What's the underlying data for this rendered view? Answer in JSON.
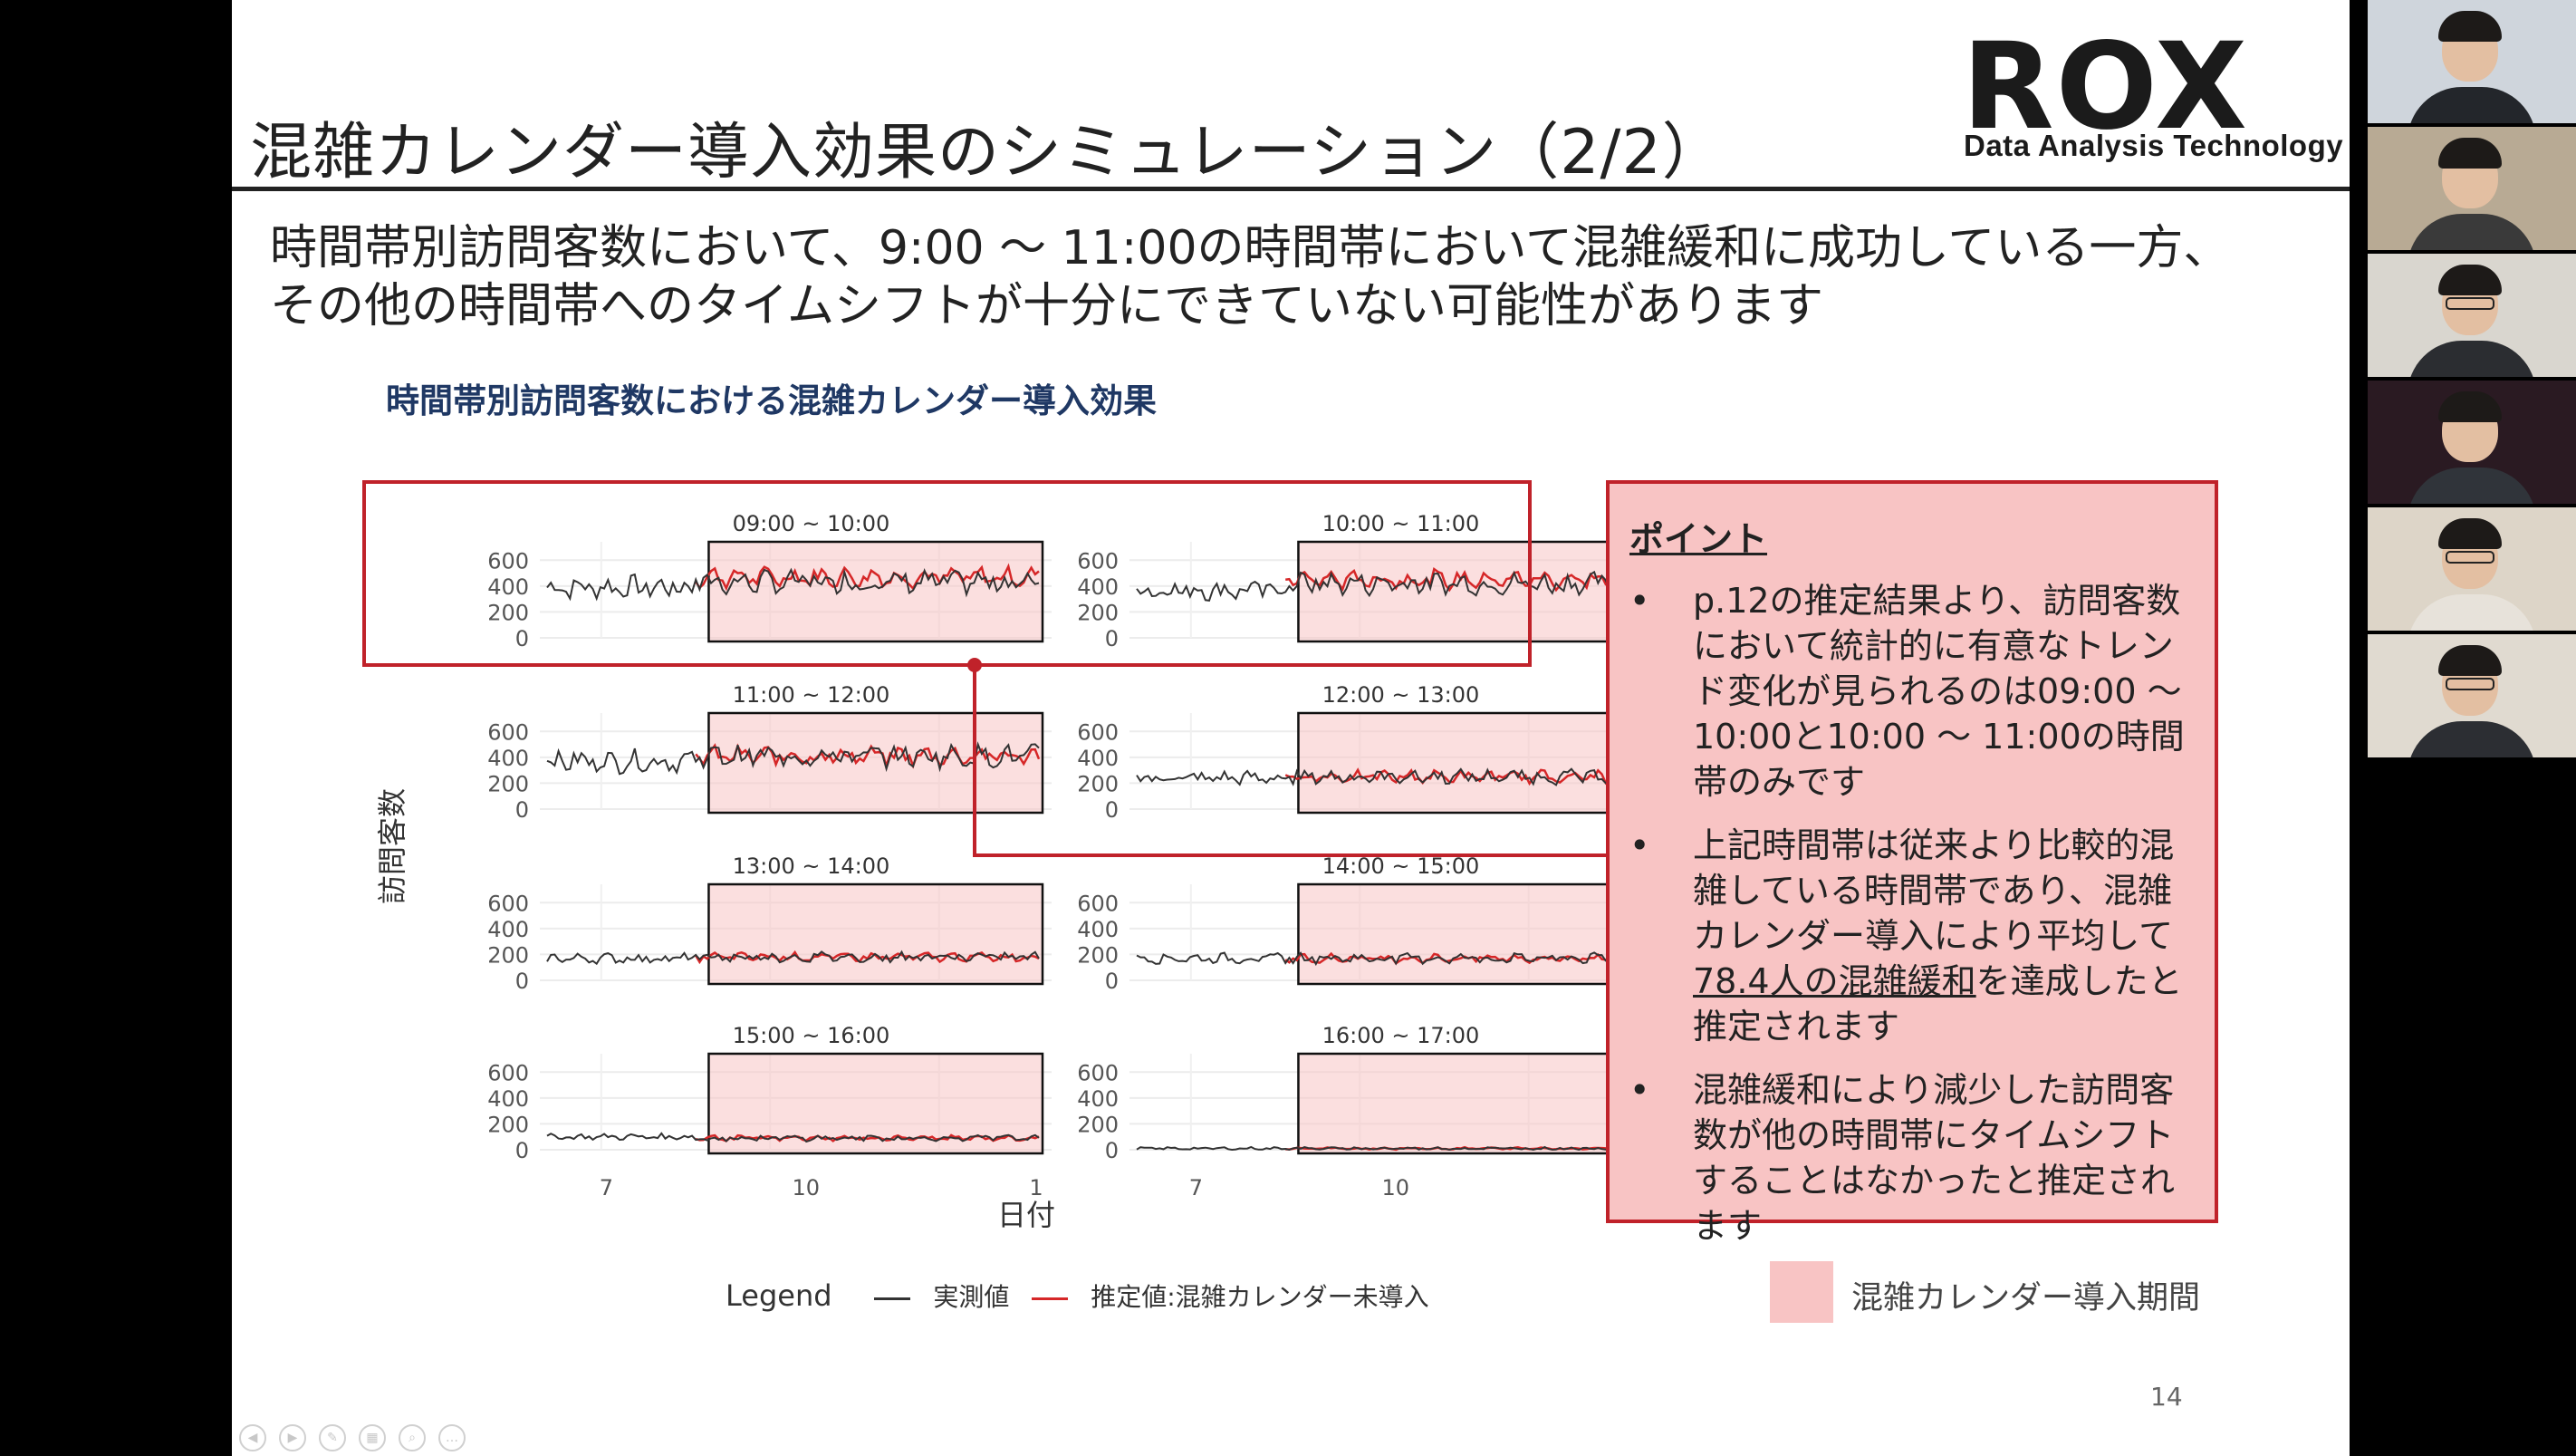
{
  "slide": {
    "title": "混雑カレンダー導入効果のシミュレーション（2/2）",
    "logo_text": "ROX",
    "logo_subtitle": "Data Analysis Technology",
    "lead_line1": "時間帯別訪問客数において、9:00 ～ 11:00の時間帯において混雑緩和に成功している一方、",
    "lead_line2": "その他の時間帯へのタイムシフトが十分にできていない可能性があります",
    "chart_title": "時間帯別訪問客数における混雑カレンダー導入効果",
    "page_number": "14"
  },
  "points": {
    "heading": "ポイント",
    "bullet_marker": "•",
    "b1": "p.12の推定結果より、訪問客数において統計的に有意なトレンド変化が見られるのは09:00 ～ 10:00と10:00 ～ 11:00の時間帯のみです",
    "b2_pre": "上記時間帯は従来より比較的混雑している時間帯であり、混雑カレンダー導入により平均して",
    "b2_underline": "78.4人の混雑緩和",
    "b2_post": "を達成したと推定されます",
    "b3": "混雑緩和により減少した訪問客数が他の時間帯にタイムシフトすることはなかったと推定されます"
  },
  "period_legend": "混雑カレンダー導入期間",
  "legend": {
    "title": "Legend",
    "actual_label": "実測値",
    "estimate_label": "推定値:混雑カレンダー未導入",
    "actual_color": "#333333",
    "estimate_color": "#d62728"
  },
  "colors": {
    "accent_red": "#c0222a",
    "period_fill": "#f8c4c4",
    "chart_title": "#1f3864"
  },
  "chart_data": {
    "type": "line",
    "ylabel": "訪問客数",
    "xlabel": "日付",
    "ylim": [
      0,
      700
    ],
    "y_ticks": [
      "600",
      "400",
      "200",
      "0"
    ],
    "x_ticks": [
      "7",
      "10",
      "1"
    ],
    "panels": [
      {
        "title": "09:00 ~ 10:00",
        "pre_level": 390,
        "post_actual": 430,
        "post_estimate": 470,
        "highlighted": true
      },
      {
        "title": "10:00 ~ 11:00",
        "pre_level": 370,
        "post_actual": 420,
        "post_estimate": 450,
        "highlighted": true
      },
      {
        "title": "11:00 ~ 12:00",
        "pre_level": 370,
        "post_actual": 410,
        "post_estimate": 410,
        "highlighted": false
      },
      {
        "title": "12:00 ~ 13:00",
        "pre_level": 240,
        "post_actual": 250,
        "post_estimate": 250,
        "highlighted": false
      },
      {
        "title": "13:00 ~ 14:00",
        "pre_level": 170,
        "post_actual": 180,
        "post_estimate": 180,
        "highlighted": false
      },
      {
        "title": "14:00 ~ 15:00",
        "pre_level": 170,
        "post_actual": 170,
        "post_estimate": 170,
        "highlighted": false
      },
      {
        "title": "15:00 ~ 16:00",
        "pre_level": 100,
        "post_actual": 90,
        "post_estimate": 90,
        "highlighted": false
      },
      {
        "title": "16:00 ~ 17:00",
        "pre_level": 10,
        "post_actual": 10,
        "post_estimate": 10,
        "highlighted": false
      }
    ]
  },
  "participants": [
    {
      "name": "participant-1",
      "bg": "#cfd5dc",
      "shirt": "#23262b",
      "glasses": false
    },
    {
      "name": "participant-2",
      "bg": "#b8aa94",
      "shirt": "#3a3a3a",
      "glasses": false
    },
    {
      "name": "participant-3",
      "bg": "#d9d6cf",
      "shirt": "#2b2d31",
      "glasses": true
    },
    {
      "name": "participant-4",
      "bg": "#2a1a22",
      "shirt": "#30343a",
      "glasses": false
    },
    {
      "name": "participant-5",
      "bg": "#ddd5c8",
      "shirt": "#e7e2da",
      "glasses": true
    },
    {
      "name": "participant-6",
      "bg": "#e0dad0",
      "shirt": "#2c2e33",
      "glasses": true
    }
  ]
}
